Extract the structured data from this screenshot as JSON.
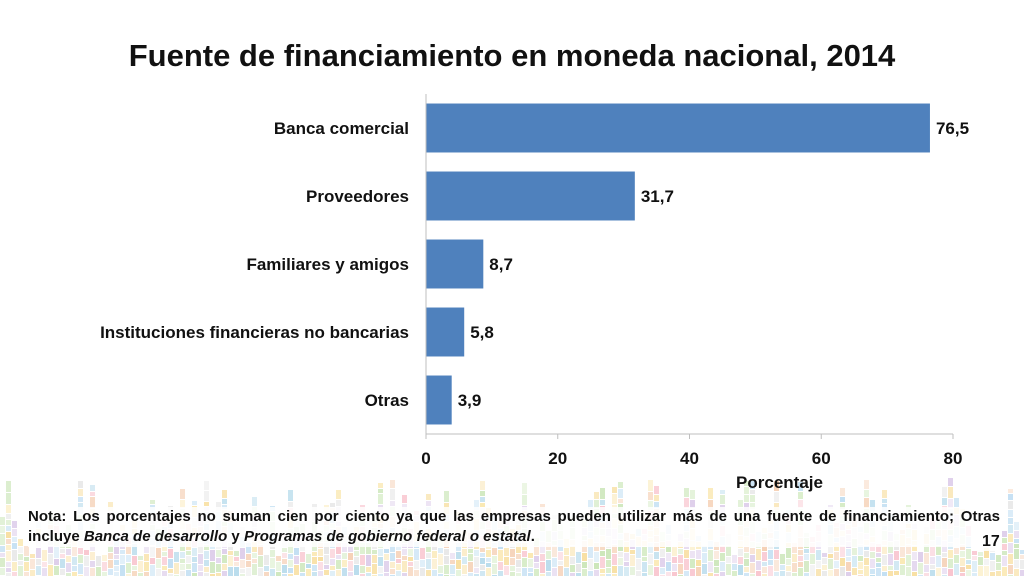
{
  "slide": {
    "note": {
      "prefix": "Nota: Los porcentajes no suman cien por ciento ya que las empresas pueden utilizar más de una fuente de financiamiento; Otras incluye ",
      "term1": "Banca de desarrollo",
      "connector": " y ",
      "term2": "Programas de gobierno federal o estatal",
      "suffix": "."
    },
    "page_number": "17"
  },
  "chart_data": {
    "type": "bar",
    "orientation": "horizontal",
    "title": "Fuente de financiamiento en moneda nacional, 2014",
    "categories": [
      "Banca comercial",
      "Proveedores",
      "Familiares y amigos",
      "Instituciones financieras no bancarias",
      "Otras"
    ],
    "values": [
      76.5,
      31.7,
      8.7,
      5.8,
      3.9
    ],
    "value_labels": [
      "76,5",
      "31,7",
      "8,7",
      "5,8",
      "3,9"
    ],
    "xlabel": "Porcentaje",
    "ylabel": "",
    "xlim": [
      0,
      80
    ],
    "xticks": [
      0,
      20,
      40,
      60,
      80
    ],
    "grid": false,
    "legend": "none",
    "bar_color": "#4f81bd"
  }
}
